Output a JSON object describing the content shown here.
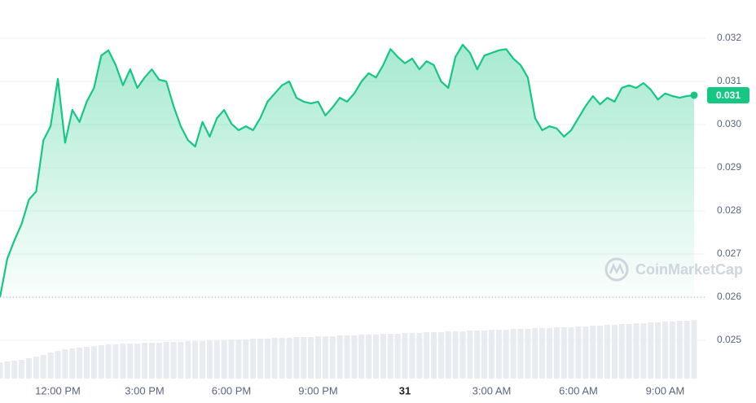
{
  "chart_data": {
    "type": "area",
    "x": [
      10,
      10.25,
      10.5,
      10.75,
      11,
      11.25,
      11.5,
      11.75,
      12,
      12.25,
      12.5,
      12.75,
      13,
      13.25,
      13.5,
      13.75,
      14,
      14.25,
      14.5,
      14.75,
      15,
      15.25,
      15.5,
      15.75,
      16,
      16.25,
      16.5,
      16.75,
      17,
      17.25,
      17.5,
      17.75,
      18,
      18.25,
      18.5,
      18.75,
      19,
      19.25,
      19.5,
      19.75,
      20,
      20.25,
      20.5,
      20.75,
      21,
      21.25,
      21.5,
      21.75,
      22,
      22.25,
      22.5,
      22.75,
      23,
      23.25,
      23.5,
      23.75,
      24,
      24.25,
      24.5,
      24.75,
      25,
      25.25,
      25.5,
      25.75,
      26,
      26.25,
      26.5,
      26.75,
      27,
      27.25,
      27.5,
      27.75,
      28,
      28.25,
      28.5,
      28.75,
      29,
      29.25,
      29.5,
      29.75,
      30,
      30.25,
      30.5,
      30.75,
      31,
      31.25,
      31.5,
      31.75,
      32,
      32.25,
      32.5,
      32.75,
      33,
      33.25,
      33.5,
      33.75,
      34
    ],
    "values": [
      0.026,
      0.02689,
      0.02732,
      0.0277,
      0.02826,
      0.02845,
      0.02964,
      0.02996,
      0.03106,
      0.02958,
      0.03034,
      0.03006,
      0.03053,
      0.03085,
      0.0316,
      0.03172,
      0.03138,
      0.03091,
      0.03128,
      0.03085,
      0.03109,
      0.03128,
      0.03104,
      0.031,
      0.03043,
      0.02996,
      0.02964,
      0.02949,
      0.03006,
      0.02972,
      0.03015,
      0.03034,
      0.03002,
      0.02987,
      0.02996,
      0.02987,
      0.03015,
      0.03053,
      0.03072,
      0.03091,
      0.031,
      0.03062,
      0.03053,
      0.03049,
      0.03053,
      0.03021,
      0.0304,
      0.03062,
      0.03053,
      0.03072,
      0.031,
      0.03119,
      0.03109,
      0.03138,
      0.03175,
      0.03157,
      0.03142,
      0.03153,
      0.03128,
      0.03147,
      0.03138,
      0.031,
      0.03085,
      0.03157,
      0.03185,
      0.03166,
      0.03128,
      0.0316,
      0.03166,
      0.03172,
      0.03175,
      0.03153,
      0.03138,
      0.03109,
      0.03015,
      0.02987,
      0.02996,
      0.02991,
      0.02972,
      0.02987,
      0.03015,
      0.03043,
      0.03066,
      0.03047,
      0.03062,
      0.03053,
      0.03085,
      0.03091,
      0.03085,
      0.03096,
      0.03081,
      0.03058,
      0.03072,
      0.03066,
      0.03062,
      0.03066,
      0.03068
    ],
    "volume": [
      20,
      21,
      22,
      23,
      25,
      27,
      29,
      32,
      34,
      36,
      37,
      38,
      39,
      40,
      41,
      42,
      42,
      43,
      43,
      43,
      44,
      44,
      44,
      45,
      45,
      45,
      46,
      46,
      46,
      47,
      47,
      47,
      48,
      48,
      48,
      49,
      49,
      49,
      50,
      50,
      50,
      51,
      51,
      51,
      52,
      52,
      52,
      53,
      53,
      53,
      54,
      54,
      54,
      55,
      55,
      55,
      56,
      56,
      56,
      57,
      57,
      57,
      58,
      58,
      58,
      59,
      59,
      59,
      60,
      60,
      60,
      61,
      61,
      61,
      62,
      62,
      62,
      63,
      63,
      63,
      64,
      64,
      65,
      65,
      66,
      66,
      67,
      67,
      68,
      68,
      69,
      69,
      70,
      70,
      71,
      71,
      72
    ],
    "volume_ylim": [
      0,
      100
    ],
    "color": "#16c784",
    "price_label": "0.031",
    "watermark": "CoinMarketCap",
    "xlim": [
      10,
      34
    ],
    "xticks": [
      {
        "value": 12,
        "label": "12:00 PM"
      },
      {
        "value": 15,
        "label": "3:00 PM"
      },
      {
        "value": 18,
        "label": "6:00 PM"
      },
      {
        "value": 21,
        "label": "9:00 PM"
      },
      {
        "value": 24,
        "label": "31"
      },
      {
        "value": 27,
        "label": "3:00 AM"
      },
      {
        "value": 30,
        "label": "6:00 AM"
      },
      {
        "value": 33,
        "label": "9:00 AM"
      }
    ],
    "ylim": [
      0.025,
      0.032
    ],
    "yticks": [
      0.025,
      0.026,
      0.027,
      0.028,
      0.029,
      {
        "value": 0.03,
        "label": "0.030"
      },
      0.031,
      0.032
    ],
    "grid": true
  }
}
